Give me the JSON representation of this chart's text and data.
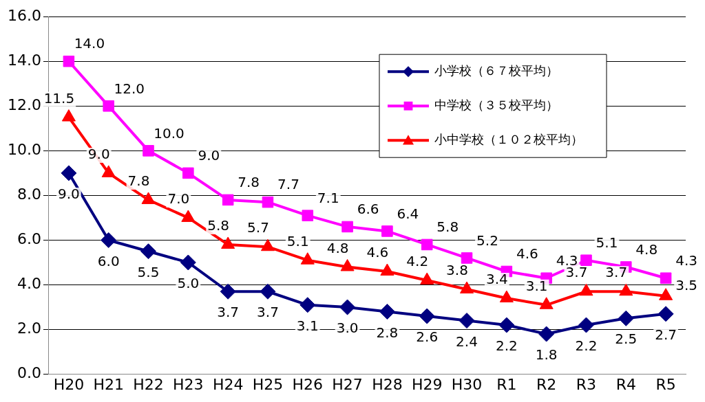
{
  "chart_data": {
    "type": "line",
    "categories": [
      "H20",
      "H21",
      "H22",
      "H23",
      "H24",
      "H25",
      "H26",
      "H27",
      "H28",
      "H29",
      "H30",
      "R1",
      "R2",
      "R3",
      "R4",
      "R5"
    ],
    "series": [
      {
        "name": "小学校（６７校平均）",
        "color": "#000080",
        "marker": "diamond",
        "values": [
          9.0,
          6.0,
          5.5,
          5.0,
          3.7,
          3.7,
          3.1,
          3.0,
          2.8,
          2.6,
          2.4,
          2.2,
          1.8,
          2.2,
          2.5,
          2.7
        ],
        "value_labels": [
          "9.0",
          "6.0",
          "5.5",
          "5.0",
          "3.7",
          "3.7",
          "3.1",
          "3.0",
          "2.8",
          "2.6",
          "2.4",
          "2.2",
          "1.8",
          "2.2",
          "2.5",
          "2.7"
        ]
      },
      {
        "name": "中学校（３５校平均）",
        "color": "#ff00ff",
        "marker": "square",
        "values": [
          14.0,
          12.0,
          10.0,
          9.0,
          7.8,
          7.7,
          7.1,
          6.6,
          6.4,
          5.8,
          5.2,
          4.6,
          4.3,
          5.1,
          4.8,
          4.3
        ],
        "value_labels": [
          "14.0",
          "12.0",
          "10.0",
          "9.0",
          "7.8",
          "7.7",
          "7.1",
          "6.6",
          "6.4",
          "5.8",
          "5.2",
          "4.6",
          "4.3",
          "5.1",
          "4.8",
          "4.3"
        ]
      },
      {
        "name": "小中学校（１０２校平均）",
        "color": "#ff0000",
        "marker": "triangle",
        "values": [
          11.5,
          9.0,
          7.8,
          7.0,
          5.8,
          5.7,
          5.1,
          4.8,
          4.6,
          4.2,
          3.8,
          3.4,
          3.1,
          3.7,
          3.7,
          3.5
        ],
        "value_labels": [
          "11.5",
          "9.0",
          "7.8",
          "7.0",
          "5.8",
          "5.7",
          "5.1",
          "4.8",
          "4.6",
          "4.2",
          "3.8",
          "3.4",
          "3.1",
          "3.7",
          "3.7",
          "3.5"
        ]
      }
    ],
    "ylim": [
      0,
      16
    ],
    "yticks": [
      {
        "value": 0,
        "label": "0.0"
      },
      {
        "value": 2,
        "label": "2.0"
      },
      {
        "value": 4,
        "label": "4.0"
      },
      {
        "value": 6,
        "label": "6.0"
      },
      {
        "value": 8,
        "label": "8.0"
      },
      {
        "value": 10,
        "label": "10.0"
      },
      {
        "value": 12,
        "label": "12.0"
      },
      {
        "value": 14,
        "label": "14.0"
      },
      {
        "value": 16,
        "label": "16.0"
      }
    ],
    "grid": "y",
    "legend": "top right",
    "line_style": "solid"
  }
}
